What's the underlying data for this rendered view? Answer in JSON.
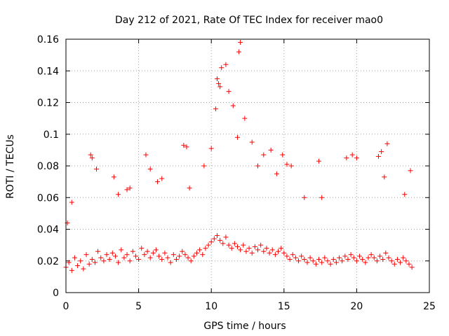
{
  "chart_data": {
    "type": "scatter",
    "title": "Day 212 of 2021, Rate Of TEC Index for receiver mao0",
    "xlabel": "GPS time / hours",
    "ylabel": "ROTI / TECUs",
    "xlim": [
      0,
      25
    ],
    "ylim": [
      0,
      0.16
    ],
    "xticks": [
      0,
      5,
      10,
      15,
      20,
      25
    ],
    "xtick_labels": [
      "0",
      "5",
      "10",
      "15",
      "20",
      "25"
    ],
    "yticks": [
      0,
      0.02,
      0.04,
      0.06,
      0.08,
      0.1,
      0.12,
      0.14,
      0.16
    ],
    "ytick_labels": [
      "0",
      "0.02",
      "0.04",
      "0.06",
      "0.08",
      "0.1",
      "0.12",
      "0.14",
      "0.16"
    ],
    "grid": true,
    "marker": "+",
    "color": "#ff0000",
    "series": [
      {
        "name": "ROTI",
        "x": [
          0.0,
          0.2,
          0.4,
          0.6,
          0.8,
          1.0,
          1.2,
          1.4,
          1.6,
          1.8,
          2.0,
          2.2,
          2.4,
          2.6,
          2.8,
          3.0,
          3.2,
          3.4,
          3.6,
          3.8,
          4.0,
          4.2,
          4.4,
          4.6,
          4.8,
          5.0,
          5.2,
          5.4,
          5.6,
          5.8,
          6.0,
          6.2,
          6.4,
          6.6,
          6.8,
          7.0,
          7.2,
          7.4,
          7.6,
          7.8,
          8.0,
          8.2,
          8.4,
          8.6,
          8.8,
          9.0,
          9.2,
          9.4,
          9.6,
          9.8,
          10.0,
          10.2,
          10.4,
          10.6,
          10.8,
          11.0,
          11.2,
          11.4,
          11.6,
          11.8,
          12.0,
          12.2,
          12.4,
          12.6,
          12.8,
          13.0,
          13.2,
          13.4,
          13.6,
          13.8,
          14.0,
          14.2,
          14.4,
          14.6,
          14.8,
          15.0,
          15.2,
          15.4,
          15.6,
          15.8,
          16.0,
          16.2,
          16.4,
          16.6,
          16.8,
          17.0,
          17.2,
          17.4,
          17.6,
          17.8,
          18.0,
          18.2,
          18.4,
          18.6,
          18.8,
          19.0,
          19.2,
          19.4,
          19.6,
          19.8,
          20.0,
          20.2,
          20.4,
          20.6,
          20.8,
          21.0,
          21.2,
          21.4,
          21.6,
          21.8,
          22.0,
          22.2,
          22.4,
          22.6,
          22.8,
          23.0,
          23.2,
          23.4,
          23.6,
          23.8,
          0.1,
          0.4,
          1.7,
          1.8,
          2.1,
          3.3,
          3.6,
          4.2,
          4.4,
          5.5,
          5.8,
          6.3,
          6.6,
          8.1,
          8.3,
          8.5,
          9.5,
          10.0,
          10.3,
          10.4,
          10.5,
          10.6,
          10.7,
          11.0,
          11.2,
          11.5,
          11.8,
          11.9,
          12.0,
          12.3,
          12.8,
          13.2,
          13.6,
          14.1,
          14.5,
          14.9,
          15.2,
          15.5,
          16.4,
          17.4,
          17.6,
          19.3,
          19.7,
          20.0,
          21.5,
          21.7,
          21.9,
          22.1,
          23.3,
          23.7
        ],
        "y": [
          0.016,
          0.019,
          0.014,
          0.022,
          0.017,
          0.02,
          0.015,
          0.024,
          0.018,
          0.021,
          0.019,
          0.026,
          0.022,
          0.02,
          0.024,
          0.021,
          0.025,
          0.023,
          0.019,
          0.027,
          0.022,
          0.024,
          0.02,
          0.026,
          0.023,
          0.021,
          0.028,
          0.024,
          0.026,
          0.022,
          0.025,
          0.027,
          0.023,
          0.021,
          0.025,
          0.022,
          0.019,
          0.024,
          0.021,
          0.023,
          0.026,
          0.024,
          0.022,
          0.02,
          0.023,
          0.025,
          0.027,
          0.024,
          0.028,
          0.03,
          0.032,
          0.034,
          0.036,
          0.033,
          0.031,
          0.035,
          0.03,
          0.028,
          0.031,
          0.029,
          0.027,
          0.03,
          0.026,
          0.028,
          0.025,
          0.029,
          0.027,
          0.03,
          0.026,
          0.028,
          0.025,
          0.027,
          0.024,
          0.026,
          0.028,
          0.025,
          0.023,
          0.021,
          0.024,
          0.022,
          0.02,
          0.023,
          0.021,
          0.019,
          0.022,
          0.02,
          0.018,
          0.021,
          0.019,
          0.022,
          0.02,
          0.018,
          0.021,
          0.019,
          0.022,
          0.02,
          0.023,
          0.021,
          0.024,
          0.022,
          0.02,
          0.023,
          0.021,
          0.019,
          0.022,
          0.024,
          0.022,
          0.02,
          0.023,
          0.021,
          0.025,
          0.022,
          0.02,
          0.018,
          0.021,
          0.019,
          0.022,
          0.02,
          0.018,
          0.016,
          0.044,
          0.057,
          0.087,
          0.085,
          0.078,
          0.073,
          0.062,
          0.065,
          0.066,
          0.087,
          0.078,
          0.07,
          0.072,
          0.093,
          0.092,
          0.066,
          0.08,
          0.091,
          0.116,
          0.135,
          0.132,
          0.13,
          0.142,
          0.144,
          0.127,
          0.118,
          0.098,
          0.152,
          0.158,
          0.11,
          0.095,
          0.08,
          0.087,
          0.09,
          0.075,
          0.087,
          0.081,
          0.08,
          0.06,
          0.083,
          0.06,
          0.085,
          0.087,
          0.085,
          0.086,
          0.089,
          0.073,
          0.094,
          0.062,
          0.077
        ]
      }
    ]
  }
}
